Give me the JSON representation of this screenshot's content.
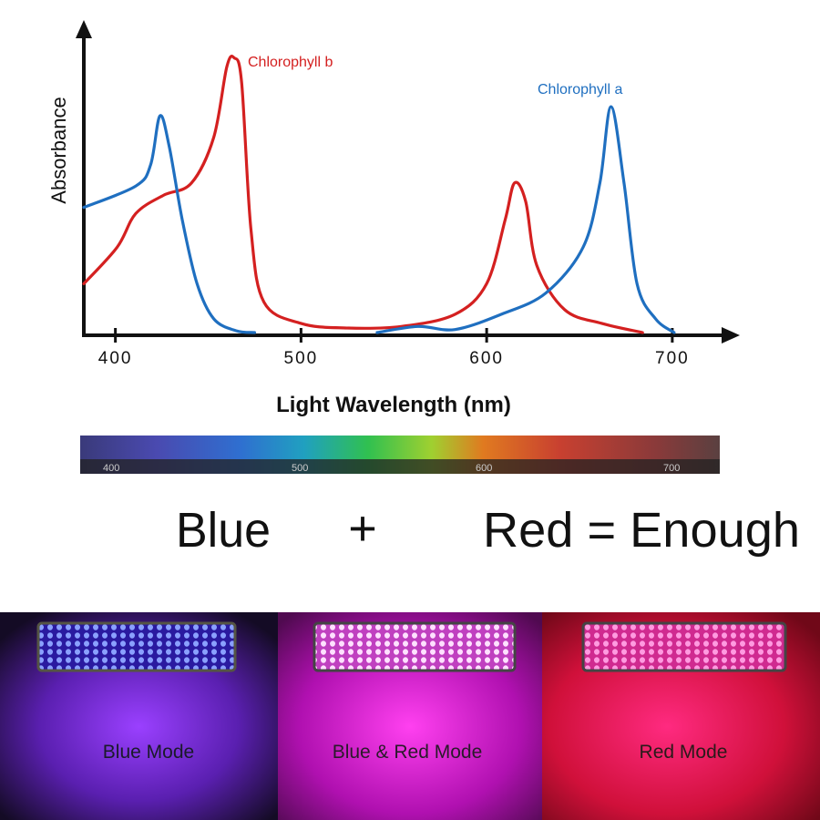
{
  "chart_data": {
    "type": "line",
    "y_label": "Absorbance",
    "x_label": "Light  Wavelength  (nm)",
    "xlim": [
      383,
      730
    ],
    "xticks": [
      400,
      500,
      600,
      700
    ],
    "ylim": [
      0,
      100
    ],
    "series": [
      {
        "name": "Chlorophyll b",
        "color": "#d42020",
        "x": [
          383,
          401,
          411,
          426,
          441,
          453,
          460,
          464,
          468,
          473,
          480,
          500,
          524,
          554,
          583,
          600,
          610,
          615,
          621,
          627,
          642,
          662,
          684
        ],
        "values": [
          16,
          28,
          39,
          45,
          49,
          64,
          87,
          90,
          82,
          34,
          10,
          3,
          1.5,
          2,
          6,
          16,
          37,
          49,
          43,
          22,
          7.5,
          3,
          0
        ]
      },
      {
        "name": "Chlorophyll a",
        "color": "#1f6fc0",
        "x": [
          383,
          411,
          419,
          424,
          429,
          436,
          444,
          453,
          465,
          475,
          510,
          541,
          563,
          583,
          608,
          632,
          652,
          661,
          667,
          674,
          681,
          691,
          701
        ],
        "values": [
          41,
          48,
          55,
          71,
          61,
          37,
          16,
          4.5,
          0.6,
          0,
          null,
          0,
          2,
          1,
          6,
          13,
          28,
          49,
          74,
          49,
          16,
          4.5,
          0
        ]
      }
    ]
  },
  "spectrum": {
    "ticks": [
      "400",
      "500",
      "600",
      "700"
    ]
  },
  "equation": {
    "left": "Blue",
    "plus": "+",
    "right": "Red =  Enough"
  },
  "modes": [
    "Blue Mode",
    "Blue & Red Mode",
    "Red Mode"
  ]
}
